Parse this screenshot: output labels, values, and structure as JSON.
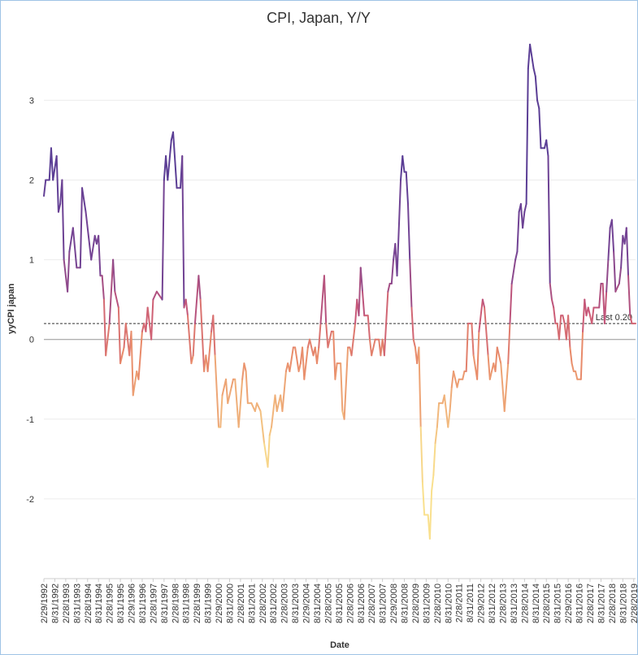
{
  "chart_data": {
    "type": "line",
    "title": "CPI, Japan, Y/Y",
    "xlabel": "Date",
    "ylabel": "yyCPI japan",
    "ylim": [
      -3,
      3.85
    ],
    "yticks": [
      -2,
      -1,
      0,
      1,
      2,
      3
    ],
    "xlim": [
      "1992-02",
      "2019-03"
    ],
    "xtick_labels": [
      "2/29/1992",
      "8/31/1992",
      "2/28/1993",
      "8/31/1993",
      "2/28/1994",
      "8/31/1994",
      "2/28/1995",
      "8/31/1995",
      "2/29/1996",
      "8/31/1996",
      "2/28/1997",
      "8/31/1997",
      "2/28/1998",
      "8/31/1998",
      "2/28/1999",
      "8/31/1999",
      "2/29/2000",
      "8/31/2000",
      "2/28/2001",
      "8/31/2001",
      "2/28/2002",
      "8/31/2002",
      "2/28/2003",
      "8/31/2003",
      "2/29/2004",
      "8/31/2004",
      "2/28/2005",
      "8/31/2005",
      "2/28/2006",
      "8/31/2006",
      "2/28/2007",
      "8/31/2007",
      "2/29/2008",
      "8/31/2008",
      "2/28/2009",
      "8/31/2009",
      "2/28/2010",
      "8/31/2010",
      "2/28/2011",
      "8/31/2011",
      "2/29/2012",
      "8/31/2012",
      "2/28/2013",
      "8/31/2013",
      "2/28/2014",
      "8/31/2014",
      "2/28/2015",
      "8/31/2015",
      "2/29/2016",
      "8/31/2016",
      "2/28/2017",
      "8/31/2017",
      "2/28/2018",
      "8/31/2018",
      "2/28/2019"
    ],
    "last_value": 0.2,
    "last_label": "Last 0.20",
    "color_scale": [
      "#f9e08e",
      "#e88a6a",
      "#c95878",
      "#7a4593",
      "#5b3e95"
    ],
    "grid": "horizontal",
    "series": [
      {
        "points": [
          [
            "1992-02",
            1.8
          ],
          [
            "1992-03",
            2.0
          ],
          [
            "1992-05",
            2.0
          ],
          [
            "1992-06",
            2.4
          ],
          [
            "1992-07",
            2.0
          ],
          [
            "1992-09",
            2.3
          ],
          [
            "1992-10",
            1.6
          ],
          [
            "1992-11",
            1.7
          ],
          [
            "1992-12",
            2.0
          ],
          [
            "1993-01",
            1.0
          ],
          [
            "1993-03",
            0.6
          ],
          [
            "1993-04",
            1.1
          ],
          [
            "1993-06",
            1.4
          ],
          [
            "1993-08",
            0.9
          ],
          [
            "1993-10",
            0.9
          ],
          [
            "1993-11",
            1.9
          ],
          [
            "1994-01",
            1.6
          ],
          [
            "1994-04",
            1.0
          ],
          [
            "1994-06",
            1.3
          ],
          [
            "1994-07",
            1.2
          ],
          [
            "1994-08",
            1.3
          ],
          [
            "1994-09",
            0.8
          ],
          [
            "1994-10",
            0.8
          ],
          [
            "1994-11",
            0.5
          ],
          [
            "1994-12",
            -0.2
          ],
          [
            "1995-02",
            0.2
          ],
          [
            "1995-04",
            1.0
          ],
          [
            "1995-05",
            0.6
          ],
          [
            "1995-07",
            0.4
          ],
          [
            "1995-08",
            -0.3
          ],
          [
            "1995-10",
            -0.1
          ],
          [
            "1995-11",
            0.2
          ],
          [
            "1996-01",
            -0.2
          ],
          [
            "1996-02",
            0.1
          ],
          [
            "1996-03",
            -0.7
          ],
          [
            "1996-05",
            -0.4
          ],
          [
            "1996-06",
            -0.5
          ],
          [
            "1996-08",
            0.1
          ],
          [
            "1996-09",
            0.2
          ],
          [
            "1996-10",
            0.1
          ],
          [
            "1996-11",
            0.4
          ],
          [
            "1997-01",
            0.0
          ],
          [
            "1997-02",
            0.5
          ],
          [
            "1997-04",
            0.6
          ],
          [
            "1997-07",
            0.5
          ],
          [
            "1997-08",
            2.0
          ],
          [
            "1997-09",
            2.3
          ],
          [
            "1997-10",
            2.0
          ],
          [
            "1997-12",
            2.5
          ],
          [
            "1998-01",
            2.6
          ],
          [
            "1998-03",
            1.9
          ],
          [
            "1998-05",
            1.9
          ],
          [
            "1998-06",
            2.3
          ],
          [
            "1998-07",
            0.4
          ],
          [
            "1998-08",
            0.5
          ],
          [
            "1998-09",
            0.3
          ],
          [
            "1998-11",
            -0.3
          ],
          [
            "1998-12",
            -0.2
          ],
          [
            "1999-01",
            0.2
          ],
          [
            "1999-03",
            0.8
          ],
          [
            "1999-04",
            0.5
          ],
          [
            "1999-06",
            -0.4
          ],
          [
            "1999-07",
            -0.2
          ],
          [
            "1999-08",
            -0.4
          ],
          [
            "1999-10",
            0.1
          ],
          [
            "1999-11",
            0.3
          ],
          [
            "1999-12",
            -0.2
          ],
          [
            "2000-02",
            -1.1
          ],
          [
            "2000-03",
            -1.1
          ],
          [
            "2000-04",
            -0.7
          ],
          [
            "2000-06",
            -0.5
          ],
          [
            "2000-07",
            -0.8
          ],
          [
            "2000-09",
            -0.6
          ],
          [
            "2000-10",
            -0.5
          ],
          [
            "2000-11",
            -0.5
          ],
          [
            "2001-01",
            -1.1
          ],
          [
            "2001-03",
            -0.5
          ],
          [
            "2001-04",
            -0.3
          ],
          [
            "2001-05",
            -0.4
          ],
          [
            "2001-06",
            -0.8
          ],
          [
            "2001-08",
            -0.8
          ],
          [
            "2001-10",
            -0.9
          ],
          [
            "2001-11",
            -0.8
          ],
          [
            "2002-01",
            -0.9
          ],
          [
            "2002-03",
            -1.3
          ],
          [
            "2002-05",
            -1.6
          ],
          [
            "2002-06",
            -1.2
          ],
          [
            "2002-07",
            -1.1
          ],
          [
            "2002-09",
            -0.7
          ],
          [
            "2002-10",
            -0.9
          ],
          [
            "2002-12",
            -0.7
          ],
          [
            "2003-01",
            -0.9
          ],
          [
            "2003-03",
            -0.4
          ],
          [
            "2003-04",
            -0.3
          ],
          [
            "2003-05",
            -0.4
          ],
          [
            "2003-07",
            -0.1
          ],
          [
            "2003-08",
            -0.1
          ],
          [
            "2003-10",
            -0.4
          ],
          [
            "2003-11",
            -0.3
          ],
          [
            "2003-12",
            -0.1
          ],
          [
            "2004-01",
            -0.5
          ],
          [
            "2004-03",
            -0.1
          ],
          [
            "2004-04",
            0.0
          ],
          [
            "2004-06",
            -0.2
          ],
          [
            "2004-07",
            -0.1
          ],
          [
            "2004-08",
            -0.3
          ],
          [
            "2004-09",
            -0.1
          ],
          [
            "2004-10",
            0.2
          ],
          [
            "2004-12",
            0.8
          ],
          [
            "2005-01",
            0.2
          ],
          [
            "2005-02",
            -0.1
          ],
          [
            "2005-04",
            0.1
          ],
          [
            "2005-05",
            0.1
          ],
          [
            "2005-06",
            -0.5
          ],
          [
            "2005-07",
            -0.3
          ],
          [
            "2005-09",
            -0.3
          ],
          [
            "2005-10",
            -0.9
          ],
          [
            "2005-11",
            -1.0
          ],
          [
            "2006-01",
            -0.1
          ],
          [
            "2006-02",
            -0.1
          ],
          [
            "2006-03",
            -0.2
          ],
          [
            "2006-05",
            0.2
          ],
          [
            "2006-06",
            0.5
          ],
          [
            "2006-07",
            0.3
          ],
          [
            "2006-08",
            0.9
          ],
          [
            "2006-09",
            0.6
          ],
          [
            "2006-10",
            0.3
          ],
          [
            "2006-12",
            0.3
          ],
          [
            "2007-01",
            0.0
          ],
          [
            "2007-02",
            -0.2
          ],
          [
            "2007-04",
            0.0
          ],
          [
            "2007-06",
            0.0
          ],
          [
            "2007-07",
            -0.2
          ],
          [
            "2007-08",
            0.0
          ],
          [
            "2007-09",
            -0.2
          ],
          [
            "2007-11",
            0.6
          ],
          [
            "2007-12",
            0.7
          ],
          [
            "2008-01",
            0.7
          ],
          [
            "2008-02",
            1.0
          ],
          [
            "2008-03",
            1.2
          ],
          [
            "2008-04",
            0.8
          ],
          [
            "2008-06",
            2.0
          ],
          [
            "2008-07",
            2.3
          ],
          [
            "2008-08",
            2.1
          ],
          [
            "2008-09",
            2.1
          ],
          [
            "2008-10",
            1.7
          ],
          [
            "2008-11",
            1.0
          ],
          [
            "2008-12",
            0.4
          ],
          [
            "2009-01",
            0.0
          ],
          [
            "2009-02",
            -0.1
          ],
          [
            "2009-03",
            -0.3
          ],
          [
            "2009-04",
            -0.1
          ],
          [
            "2009-05",
            -1.1
          ],
          [
            "2009-06",
            -1.8
          ],
          [
            "2009-07",
            -2.2
          ],
          [
            "2009-09",
            -2.2
          ],
          [
            "2009-10",
            -2.5
          ],
          [
            "2009-11",
            -1.9
          ],
          [
            "2009-12",
            -1.7
          ],
          [
            "2010-01",
            -1.3
          ],
          [
            "2010-02",
            -1.1
          ],
          [
            "2010-03",
            -0.8
          ],
          [
            "2010-05",
            -0.8
          ],
          [
            "2010-06",
            -0.7
          ],
          [
            "2010-08",
            -1.1
          ],
          [
            "2010-09",
            -0.9
          ],
          [
            "2010-10",
            -0.6
          ],
          [
            "2010-11",
            -0.4
          ],
          [
            "2011-01",
            -0.6
          ],
          [
            "2011-02",
            -0.5
          ],
          [
            "2011-04",
            -0.5
          ],
          [
            "2011-05",
            -0.4
          ],
          [
            "2011-06",
            -0.4
          ],
          [
            "2011-07",
            0.2
          ],
          [
            "2011-09",
            0.2
          ],
          [
            "2011-10",
            -0.2
          ],
          [
            "2011-12",
            -0.5
          ],
          [
            "2012-01",
            0.1
          ],
          [
            "2012-03",
            0.5
          ],
          [
            "2012-04",
            0.4
          ],
          [
            "2012-06",
            -0.2
          ],
          [
            "2012-07",
            -0.5
          ],
          [
            "2012-08",
            -0.4
          ],
          [
            "2012-09",
            -0.3
          ],
          [
            "2012-10",
            -0.4
          ],
          [
            "2012-11",
            -0.1
          ],
          [
            "2012-12",
            -0.2
          ],
          [
            "2013-01",
            -0.3
          ],
          [
            "2013-03",
            -0.9
          ],
          [
            "2013-05",
            -0.3
          ],
          [
            "2013-06",
            0.2
          ],
          [
            "2013-07",
            0.7
          ],
          [
            "2013-09",
            1.0
          ],
          [
            "2013-10",
            1.1
          ],
          [
            "2013-11",
            1.6
          ],
          [
            "2013-12",
            1.7
          ],
          [
            "2014-01",
            1.4
          ],
          [
            "2014-02",
            1.6
          ],
          [
            "2014-03",
            1.7
          ],
          [
            "2014-04",
            3.4
          ],
          [
            "2014-05",
            3.7
          ],
          [
            "2014-07",
            3.4
          ],
          [
            "2014-08",
            3.3
          ],
          [
            "2014-09",
            3.0
          ],
          [
            "2014-10",
            2.9
          ],
          [
            "2014-11",
            2.4
          ],
          [
            "2015-01",
            2.4
          ],
          [
            "2015-02",
            2.5
          ],
          [
            "2015-03",
            2.3
          ],
          [
            "2015-04",
            0.7
          ],
          [
            "2015-05",
            0.5
          ],
          [
            "2015-06",
            0.4
          ],
          [
            "2015-07",
            0.2
          ],
          [
            "2015-08",
            0.2
          ],
          [
            "2015-09",
            0.0
          ],
          [
            "2015-10",
            0.3
          ],
          [
            "2015-11",
            0.3
          ],
          [
            "2015-12",
            0.2
          ],
          [
            "2016-01",
            0.0
          ],
          [
            "2016-02",
            0.3
          ],
          [
            "2016-03",
            -0.1
          ],
          [
            "2016-04",
            -0.3
          ],
          [
            "2016-05",
            -0.4
          ],
          [
            "2016-06",
            -0.4
          ],
          [
            "2016-07",
            -0.5
          ],
          [
            "2016-09",
            -0.5
          ],
          [
            "2016-10",
            0.1
          ],
          [
            "2016-11",
            0.5
          ],
          [
            "2016-12",
            0.3
          ],
          [
            "2017-01",
            0.4
          ],
          [
            "2017-02",
            0.3
          ],
          [
            "2017-03",
            0.2
          ],
          [
            "2017-04",
            0.4
          ],
          [
            "2017-05",
            0.4
          ],
          [
            "2017-06",
            0.4
          ],
          [
            "2017-07",
            0.4
          ],
          [
            "2017-08",
            0.7
          ],
          [
            "2017-09",
            0.7
          ],
          [
            "2017-10",
            0.2
          ],
          [
            "2017-11",
            0.6
          ],
          [
            "2017-12",
            1.0
          ],
          [
            "2018-01",
            1.4
          ],
          [
            "2018-02",
            1.5
          ],
          [
            "2018-03",
            1.1
          ],
          [
            "2018-04",
            0.6
          ],
          [
            "2018-06",
            0.7
          ],
          [
            "2018-07",
            0.9
          ],
          [
            "2018-08",
            1.3
          ],
          [
            "2018-09",
            1.2
          ],
          [
            "2018-10",
            1.4
          ],
          [
            "2018-11",
            0.8
          ],
          [
            "2018-12",
            0.3
          ],
          [
            "2019-01",
            0.2
          ],
          [
            "2019-02",
            0.2
          ],
          [
            "2019-03",
            0.2
          ]
        ]
      }
    ]
  }
}
